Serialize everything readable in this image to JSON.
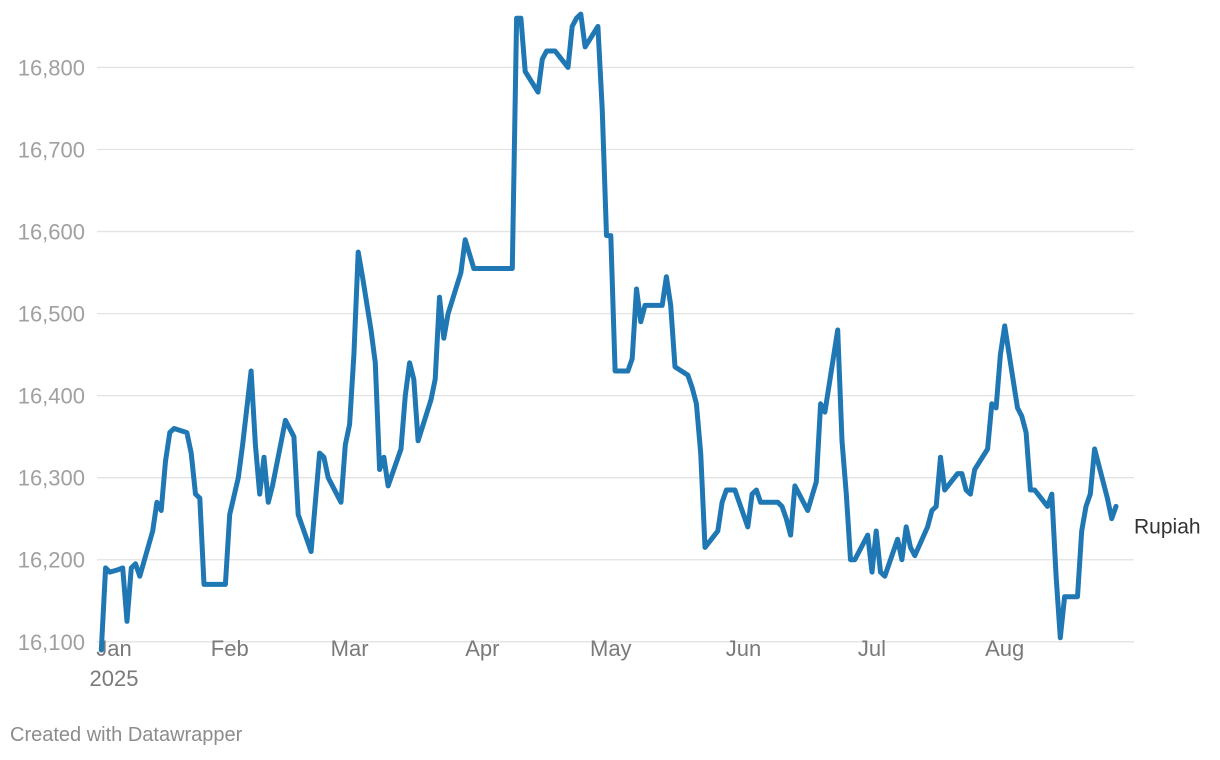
{
  "footer": "Created with Datawrapper",
  "chart_data": {
    "type": "line",
    "xlabel": "",
    "ylabel": "",
    "ylim": [
      16090,
      16870
    ],
    "y_ticks": [
      16100,
      16200,
      16300,
      16400,
      16500,
      16600,
      16700,
      16800
    ],
    "y_tick_labels": [
      "16,100",
      "16,200",
      "16,300",
      "16,400",
      "16,500",
      "16,600",
      "16,700",
      "16,800"
    ],
    "x_range": [
      "2025-01-01",
      "2025-08-27"
    ],
    "x_ticks": [
      {
        "date": "2025-01-01",
        "label": "Jan",
        "sublabel": "2025"
      },
      {
        "date": "2025-02-01",
        "label": "Feb"
      },
      {
        "date": "2025-03-01",
        "label": "Mar"
      },
      {
        "date": "2025-04-01",
        "label": "Apr"
      },
      {
        "date": "2025-05-01",
        "label": "May"
      },
      {
        "date": "2025-06-01",
        "label": "Jun"
      },
      {
        "date": "2025-07-01",
        "label": "Jul"
      },
      {
        "date": "2025-08-01",
        "label": "Aug"
      }
    ],
    "grid": true,
    "colors": {
      "line": "#1f77b4"
    },
    "series": [
      {
        "name": "Rupiah",
        "points": [
          [
            "2025-01-02",
            16090
          ],
          [
            "2025-01-03",
            16190
          ],
          [
            "2025-01-04",
            16185
          ],
          [
            "2025-01-06",
            16188
          ],
          [
            "2025-01-07",
            16190
          ],
          [
            "2025-01-08",
            16125
          ],
          [
            "2025-01-09",
            16190
          ],
          [
            "2025-01-10",
            16195
          ],
          [
            "2025-01-11",
            16180
          ],
          [
            "2025-01-14",
            16235
          ],
          [
            "2025-01-15",
            16270
          ],
          [
            "2025-01-16",
            16260
          ],
          [
            "2025-01-17",
            16320
          ],
          [
            "2025-01-18",
            16355
          ],
          [
            "2025-01-19",
            16360
          ],
          [
            "2025-01-22",
            16355
          ],
          [
            "2025-01-23",
            16330
          ],
          [
            "2025-01-24",
            16280
          ],
          [
            "2025-01-25",
            16275
          ],
          [
            "2025-01-26",
            16170
          ],
          [
            "2025-01-31",
            16170
          ],
          [
            "2025-02-01",
            16255
          ],
          [
            "2025-02-03",
            16300
          ],
          [
            "2025-02-04",
            16340
          ],
          [
            "2025-02-06",
            16430
          ],
          [
            "2025-02-07",
            16340
          ],
          [
            "2025-02-08",
            16280
          ],
          [
            "2025-02-09",
            16325
          ],
          [
            "2025-02-10",
            16270
          ],
          [
            "2025-02-11",
            16290
          ],
          [
            "2025-02-14",
            16370
          ],
          [
            "2025-02-16",
            16350
          ],
          [
            "2025-02-17",
            16255
          ],
          [
            "2025-02-20",
            16210
          ],
          [
            "2025-02-22",
            16330
          ],
          [
            "2025-02-23",
            16325
          ],
          [
            "2025-02-24",
            16300
          ],
          [
            "2025-02-27",
            16270
          ],
          [
            "2025-02-28",
            16340
          ],
          [
            "2025-03-01",
            16365
          ],
          [
            "2025-03-02",
            16450
          ],
          [
            "2025-03-03",
            16575
          ],
          [
            "2025-03-04",
            16545
          ],
          [
            "2025-03-06",
            16480
          ],
          [
            "2025-03-07",
            16440
          ],
          [
            "2025-03-08",
            16310
          ],
          [
            "2025-03-09",
            16325
          ],
          [
            "2025-03-10",
            16290
          ],
          [
            "2025-03-13",
            16335
          ],
          [
            "2025-03-14",
            16400
          ],
          [
            "2025-03-15",
            16440
          ],
          [
            "2025-03-16",
            16420
          ],
          [
            "2025-03-17",
            16345
          ],
          [
            "2025-03-20",
            16395
          ],
          [
            "2025-03-21",
            16420
          ],
          [
            "2025-03-22",
            16520
          ],
          [
            "2025-03-23",
            16470
          ],
          [
            "2025-03-24",
            16500
          ],
          [
            "2025-03-27",
            16550
          ],
          [
            "2025-03-28",
            16590
          ],
          [
            "2025-03-30",
            16555
          ],
          [
            "2025-04-08",
            16555
          ],
          [
            "2025-04-09",
            16860
          ],
          [
            "2025-04-10",
            16860
          ],
          [
            "2025-04-11",
            16795
          ],
          [
            "2025-04-14",
            16770
          ],
          [
            "2025-04-15",
            16810
          ],
          [
            "2025-04-16",
            16820
          ],
          [
            "2025-04-18",
            16820
          ],
          [
            "2025-04-21",
            16800
          ],
          [
            "2025-04-22",
            16850
          ],
          [
            "2025-04-23",
            16860
          ],
          [
            "2025-04-24",
            16865
          ],
          [
            "2025-04-25",
            16825
          ],
          [
            "2025-04-28",
            16850
          ],
          [
            "2025-04-29",
            16750
          ],
          [
            "2025-04-30",
            16595
          ],
          [
            "2025-05-01",
            16595
          ],
          [
            "2025-05-02",
            16430
          ],
          [
            "2025-05-05",
            16430
          ],
          [
            "2025-05-06",
            16445
          ],
          [
            "2025-05-07",
            16530
          ],
          [
            "2025-05-08",
            16490
          ],
          [
            "2025-05-09",
            16510
          ],
          [
            "2025-05-13",
            16510
          ],
          [
            "2025-05-14",
            16545
          ],
          [
            "2025-05-15",
            16510
          ],
          [
            "2025-05-16",
            16435
          ],
          [
            "2025-05-19",
            16425
          ],
          [
            "2025-05-20",
            16410
          ],
          [
            "2025-05-21",
            16390
          ],
          [
            "2025-05-22",
            16330
          ],
          [
            "2025-05-23",
            16215
          ],
          [
            "2025-05-26",
            16235
          ],
          [
            "2025-05-27",
            16270
          ],
          [
            "2025-05-28",
            16285
          ],
          [
            "2025-05-30",
            16285
          ],
          [
            "2025-06-02",
            16240
          ],
          [
            "2025-06-03",
            16280
          ],
          [
            "2025-06-04",
            16285
          ],
          [
            "2025-06-05",
            16270
          ],
          [
            "2025-06-09",
            16270
          ],
          [
            "2025-06-10",
            16265
          ],
          [
            "2025-06-11",
            16250
          ],
          [
            "2025-06-12",
            16230
          ],
          [
            "2025-06-13",
            16290
          ],
          [
            "2025-06-16",
            16260
          ],
          [
            "2025-06-18",
            16295
          ],
          [
            "2025-06-19",
            16390
          ],
          [
            "2025-06-20",
            16380
          ],
          [
            "2025-06-23",
            16480
          ],
          [
            "2025-06-24",
            16345
          ],
          [
            "2025-06-25",
            16280
          ],
          [
            "2025-06-26",
            16200
          ],
          [
            "2025-06-27",
            16200
          ],
          [
            "2025-06-30",
            16230
          ],
          [
            "2025-07-01",
            16185
          ],
          [
            "2025-07-02",
            16235
          ],
          [
            "2025-07-03",
            16185
          ],
          [
            "2025-07-04",
            16180
          ],
          [
            "2025-07-07",
            16225
          ],
          [
            "2025-07-08",
            16200
          ],
          [
            "2025-07-09",
            16240
          ],
          [
            "2025-07-10",
            16215
          ],
          [
            "2025-07-11",
            16205
          ],
          [
            "2025-07-14",
            16240
          ],
          [
            "2025-07-15",
            16260
          ],
          [
            "2025-07-16",
            16265
          ],
          [
            "2025-07-17",
            16325
          ],
          [
            "2025-07-18",
            16285
          ],
          [
            "2025-07-21",
            16305
          ],
          [
            "2025-07-22",
            16305
          ],
          [
            "2025-07-23",
            16285
          ],
          [
            "2025-07-24",
            16280
          ],
          [
            "2025-07-25",
            16310
          ],
          [
            "2025-07-28",
            16335
          ],
          [
            "2025-07-29",
            16390
          ],
          [
            "2025-07-30",
            16385
          ],
          [
            "2025-07-31",
            16450
          ],
          [
            "2025-08-01",
            16485
          ],
          [
            "2025-08-04",
            16385
          ],
          [
            "2025-08-05",
            16375
          ],
          [
            "2025-08-06",
            16355
          ],
          [
            "2025-08-07",
            16285
          ],
          [
            "2025-08-08",
            16285
          ],
          [
            "2025-08-11",
            16265
          ],
          [
            "2025-08-12",
            16280
          ],
          [
            "2025-08-13",
            16180
          ],
          [
            "2025-08-14",
            16105
          ],
          [
            "2025-08-15",
            16155
          ],
          [
            "2025-08-18",
            16155
          ],
          [
            "2025-08-19",
            16235
          ],
          [
            "2025-08-20",
            16265
          ],
          [
            "2025-08-21",
            16280
          ],
          [
            "2025-08-22",
            16335
          ],
          [
            "2025-08-25",
            16275
          ],
          [
            "2025-08-26",
            16250
          ],
          [
            "2025-08-27",
            16265
          ]
        ]
      }
    ]
  }
}
